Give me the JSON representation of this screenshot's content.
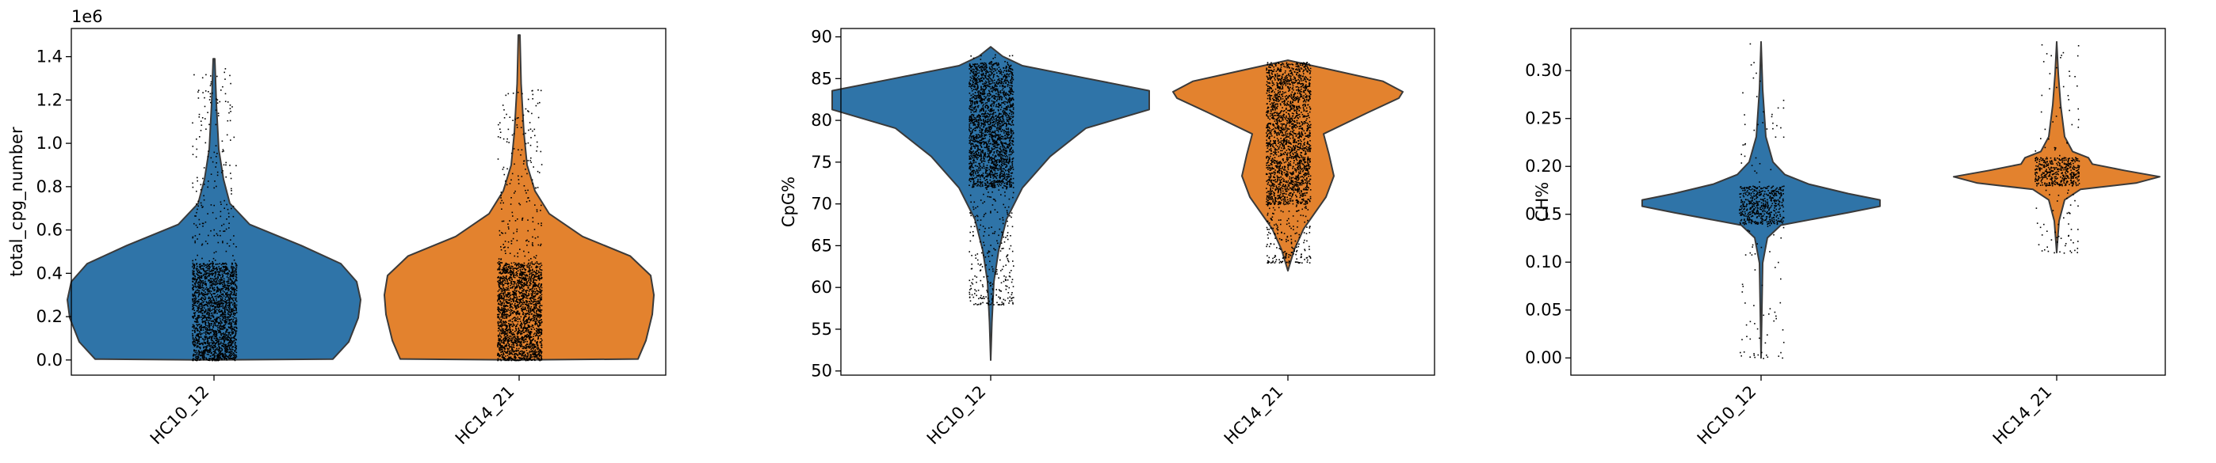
{
  "chart_data": [
    {
      "type": "violin",
      "title": "",
      "xlabel": "",
      "ylabel": "total_cpg_number",
      "offset_label": "1e6",
      "ylim": [
        -0.07,
        1.53
      ],
      "yticks": [
        0.0,
        0.2,
        0.4,
        0.6,
        0.8,
        1.0,
        1.2,
        1.4
      ],
      "ytick_labels": [
        "0.0",
        "0.2",
        "0.4",
        "0.6",
        "0.8",
        "1.0",
        "1.2",
        "1.4"
      ],
      "categories": [
        "HC10_12",
        "HC14_21"
      ],
      "colors": [
        "#2f74a8",
        "#e3822e"
      ],
      "grid": false,
      "legend": "none",
      "series": [
        {
          "min": 0.0,
          "max": 1.39,
          "mode": 0.2
        },
        {
          "min": 0.0,
          "max": 1.5,
          "mode": 0.21
        }
      ]
    },
    {
      "type": "violin",
      "title": "",
      "xlabel": "",
      "ylabel": "CpG%",
      "ylim": [
        49.5,
        91.0
      ],
      "yticks": [
        50,
        55,
        60,
        65,
        70,
        75,
        80,
        85,
        90
      ],
      "ytick_labels": [
        "50",
        "55",
        "60",
        "65",
        "70",
        "75",
        "80",
        "85",
        "90"
      ],
      "categories": [
        "HC10_12",
        "HC14_21"
      ],
      "colors": [
        "#2f74a8",
        "#e3822e"
      ],
      "grid": false,
      "legend": "none",
      "series": [
        {
          "min": 51.3,
          "max": 88.8,
          "mode": 83.3
        },
        {
          "min": 62.0,
          "max": 87.2,
          "mode": 83.3
        }
      ]
    },
    {
      "type": "violin",
      "title": "",
      "xlabel": "",
      "ylabel": "CH%",
      "ylim": [
        -0.018,
        0.344
      ],
      "yticks": [
        0.0,
        0.05,
        0.1,
        0.15,
        0.2,
        0.25,
        0.3
      ],
      "ytick_labels": [
        "0.00",
        "0.05",
        "0.10",
        "0.15",
        "0.20",
        "0.25",
        "0.30"
      ],
      "categories": [
        "HC10_12",
        "HC14_21"
      ],
      "colors": [
        "#2f74a8",
        "#e3822e"
      ],
      "grid": false,
      "legend": "none",
      "series": [
        {
          "min": 0.0,
          "max": 0.33,
          "mode": 0.16
        },
        {
          "min": 0.11,
          "max": 0.33,
          "mode": 0.19
        }
      ]
    }
  ]
}
